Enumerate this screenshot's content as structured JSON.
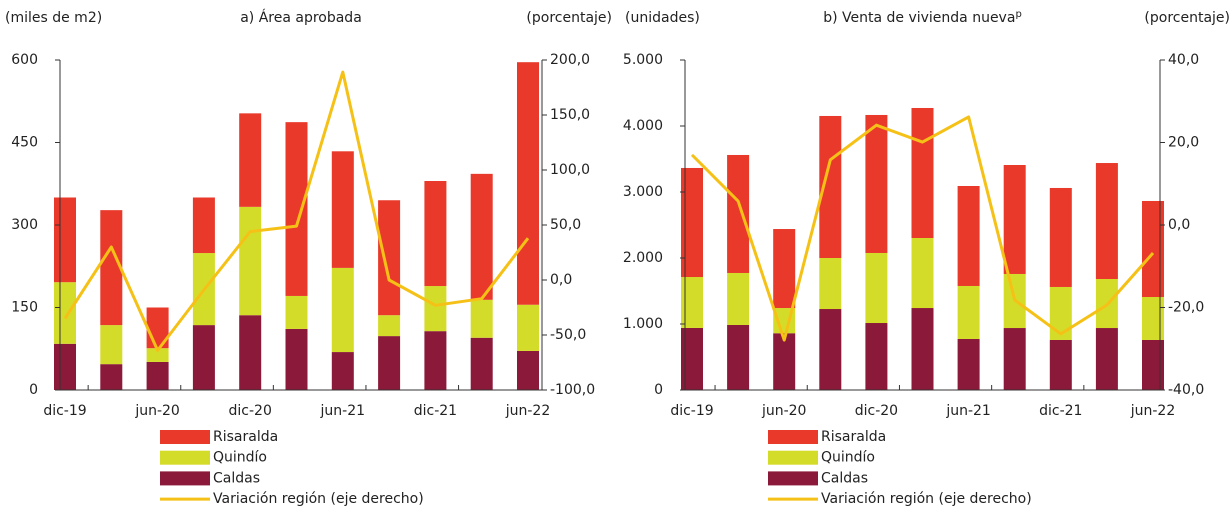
{
  "chart_data": [
    {
      "type": "bar",
      "title": "a) Área aprobada",
      "y_label": "(miles de m2)",
      "y2_label": "(porcentaje)",
      "categories": [
        "dic-19",
        null,
        "jun-20",
        null,
        "dic-20",
        null,
        "jun-21",
        null,
        "dic-21",
        null,
        "jun-22"
      ],
      "stacked": true,
      "series": [
        {
          "name": "Caldas",
          "color": "#8b1a3a",
          "values": [
            84,
            47,
            51,
            118,
            136,
            111,
            69,
            98,
            107,
            95,
            71
          ]
        },
        {
          "name": "Quindío",
          "color": "#d4dc2a",
          "values": [
            112,
            71,
            25,
            131,
            197,
            60,
            153,
            38,
            82,
            69,
            84
          ]
        },
        {
          "name": "Risaralda",
          "color": "#e8392a",
          "values": [
            154,
            209,
            74,
            101,
            170,
            316,
            212,
            209,
            191,
            229,
            441
          ]
        },
        {
          "name": "Variación región (eje derecho)",
          "type": "line",
          "axis": "y2",
          "color": "#f5c116",
          "values": [
            -35,
            30,
            -64,
            -9,
            44,
            49,
            189,
            0,
            -23,
            -17,
            38
          ]
        }
      ],
      "ylim": [
        0,
        600
      ],
      "yticks": [
        0,
        150,
        300,
        450,
        600
      ],
      "y2lim": [
        -100,
        200
      ],
      "y2ticks": [
        {
          "value": -100,
          "label": "-100,0"
        },
        {
          "value": -50,
          "label": "-50,0"
        },
        {
          "value": 0,
          "label": "0,0"
        },
        {
          "value": 50,
          "label": "50,0"
        },
        {
          "value": 100,
          "label": "100,0"
        },
        {
          "value": 150,
          "label": "150,0"
        },
        {
          "value": 200,
          "label": "200,0"
        }
      ],
      "grid": false
    },
    {
      "type": "bar",
      "title": "b) Venta de vivienda nueva",
      "title_note": "p",
      "y_label": "(unidades)",
      "y2_label": "(porcentaje)",
      "categories": [
        "dic-19",
        null,
        "jun-20",
        null,
        "dic-20",
        null,
        "jun-21",
        null,
        "dic-21",
        null,
        "jun-22"
      ],
      "stacked": true,
      "series": [
        {
          "name": "Caldas",
          "color": "#8b1a3a",
          "values": [
            940,
            985,
            860,
            1227,
            1015,
            1242,
            773,
            939,
            758,
            939,
            758
          ]
        },
        {
          "name": "Quindío",
          "color": "#d4dc2a",
          "values": [
            772,
            788,
            382,
            773,
            1061,
            1061,
            803,
            819,
            803,
            743,
            651
          ]
        },
        {
          "name": "Risaralda",
          "color": "#e8392a",
          "values": [
            1652,
            1788,
            1197,
            2152,
            2091,
            1970,
            1515,
            1651,
            1500,
            1757,
            1455
          ]
        },
        {
          "name": "Variación región (eje derecho)",
          "type": "line",
          "axis": "y2",
          "color": "#f5c116",
          "values": [
            17.0,
            5.8,
            -27.9,
            15.8,
            24.2,
            20.1,
            26.2,
            -18.2,
            -26.4,
            -19.4,
            -6.8
          ]
        }
      ],
      "ylim": [
        0,
        5000
      ],
      "yticks": [
        0,
        {
          "value": 1000,
          "label": "1.000"
        },
        {
          "value": 2000,
          "label": "2.000"
        },
        {
          "value": 3000,
          "label": "3.000"
        },
        {
          "value": 4000,
          "label": "4.000"
        },
        {
          "value": 5000,
          "label": "5.000"
        }
      ],
      "y2lim": [
        -40,
        40
      ],
      "y2ticks": [
        {
          "value": -40,
          "label": "-40,0"
        },
        {
          "value": -20,
          "label": "-20,0"
        },
        {
          "value": 0,
          "label": "0,0"
        },
        {
          "value": 20,
          "label": "20,0"
        },
        {
          "value": 40,
          "label": "40,0"
        }
      ],
      "grid": false
    }
  ]
}
